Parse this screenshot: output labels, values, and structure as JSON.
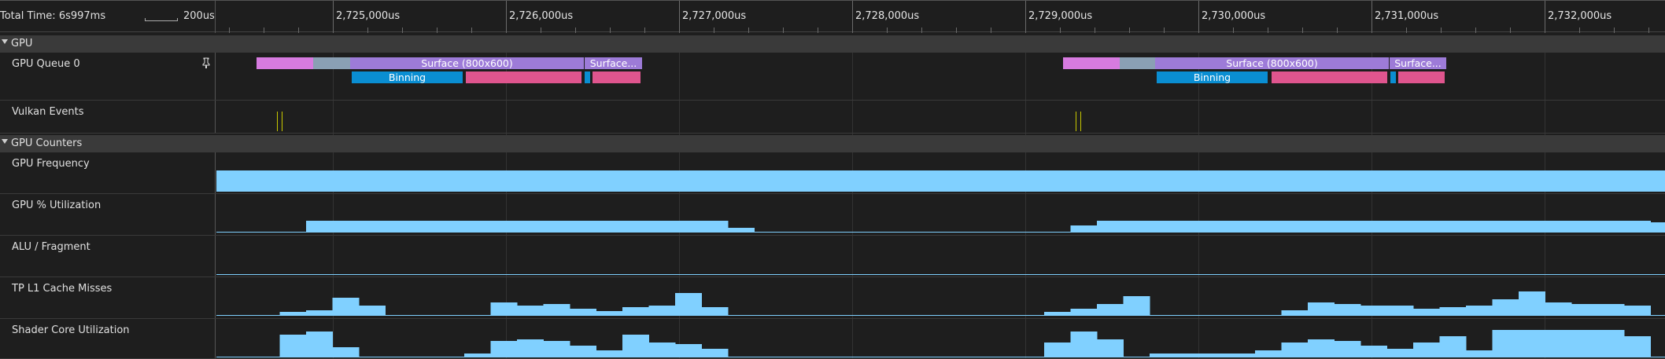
{
  "header": {
    "total_time": "Total Time: 6s997ms",
    "scale_label": "200us",
    "ticks": [
      "2,725,000us",
      "2,726,000us",
      "2,727,000us",
      "2,728,000us",
      "2,729,000us",
      "2,730,000us",
      "2,731,000us",
      "2,732,000us"
    ]
  },
  "sections": {
    "gpu": "GPU",
    "gpu_counters": "GPU Counters"
  },
  "tracks": {
    "gpu_queue": "GPU Queue 0",
    "vulkan_events": "Vulkan Events",
    "gpu_frequency": "GPU Frequency",
    "gpu_utilization": "GPU % Utilization",
    "alu_fragment": "ALU / Fragment",
    "tp_l1": "TP L1 Cache Misses",
    "shader_core": "Shader Core Utilization"
  },
  "slices": {
    "surface_label": "Surface (800x600)",
    "surface_short": "Surface...",
    "binning_label": "Binning"
  },
  "colors": {
    "surface": "#9d7bd8",
    "render_pink": "#d77be0",
    "binning": "#0a8ed2",
    "rendering": "#e0558e",
    "counter_fill": "#80d0ff"
  },
  "counters": {
    "gpu_utilization": [
      0,
      0,
      0.35,
      0.35,
      0.35,
      0.35,
      0.35,
      0.35,
      0.35,
      0.35,
      0.35,
      0.35,
      0.35,
      0.35,
      0.35,
      0.35,
      0.35,
      0.35,
      0.12,
      0,
      0,
      0,
      0,
      0,
      0,
      0,
      0,
      0,
      0,
      0,
      0,
      0.2,
      0.35,
      0.35,
      0.35,
      0.35,
      0.35,
      0.35,
      0.35,
      0.35,
      0.35,
      0.35,
      0.35,
      0.35,
      0.35,
      0.35,
      0.35,
      0.35,
      0.35,
      0.35,
      0.35,
      0.35,
      0.35,
      0.3
    ],
    "tp_l1": [
      0,
      0.1,
      0.15,
      0.55,
      0.3,
      0,
      0,
      0,
      0,
      0.4,
      0.3,
      0.35,
      0.2,
      0.12,
      0.25,
      0.3,
      0.7,
      0.25,
      0,
      0,
      0,
      0,
      0,
      0,
      0,
      0,
      0,
      0,
      0,
      0,
      0.1,
      0.2,
      0.35,
      0.6,
      0,
      0,
      0,
      0,
      0,
      0.15,
      0.4,
      0.35,
      0.3,
      0.3,
      0.2,
      0.25,
      0.3,
      0.5,
      0.75,
      0.4,
      0.35,
      0.35,
      0.3
    ],
    "shader_core": [
      0,
      0.7,
      0.8,
      0.3,
      0,
      0,
      0,
      0,
      0.1,
      0.5,
      0.55,
      0.5,
      0.35,
      0.2,
      0.7,
      0.45,
      0.4,
      0.25,
      0,
      0,
      0,
      0,
      0,
      0,
      0,
      0,
      0,
      0,
      0,
      0,
      0.45,
      0.8,
      0.55,
      0,
      0.1,
      0.1,
      0.1,
      0.1,
      0.2,
      0.45,
      0.55,
      0.5,
      0.35,
      0.25,
      0.45,
      0.65,
      0.2,
      0.85,
      0.85,
      0.85,
      0.85,
      0.85,
      0.65
    ]
  }
}
